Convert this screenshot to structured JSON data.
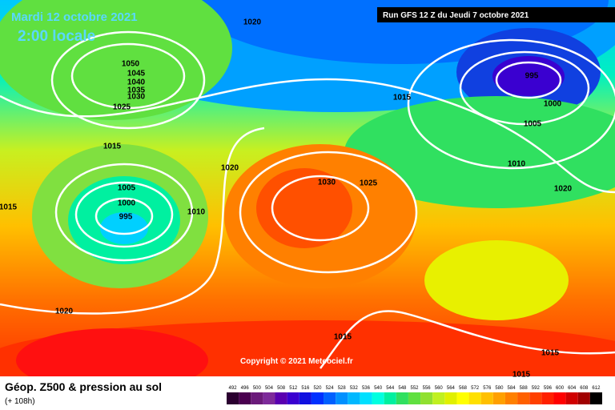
{
  "header": {
    "date": "Mardi 12 octobre 2021",
    "local_time": "2:00 locale",
    "run": "Run GFS 12 Z du Jeudi 7 octobre 2021"
  },
  "copyright": "Copyright © 2021 Meteociel.fr",
  "footer": {
    "title": "Géop. Z500 & pression au sol",
    "lead": "(+ 108h)"
  },
  "isobar_labels": [
    1020,
    1050,
    1045,
    1040,
    1035,
    1030,
    1025,
    1015,
    1015,
    995,
    1000,
    1005,
    1010,
    1020,
    1020,
    1030,
    1025,
    1005,
    1000,
    995,
    1010,
    1015,
    1020,
    1015,
    1015,
    1015
  ],
  "colorbar": {
    "labels": [
      492,
      496,
      500,
      504,
      508,
      512,
      516,
      520,
      524,
      528,
      532,
      536,
      540,
      544,
      548,
      552,
      556,
      560,
      564,
      568,
      572,
      576,
      580,
      584,
      588,
      592,
      596,
      600,
      604,
      608,
      612
    ],
    "colors": [
      "#2b0030",
      "#4a004f",
      "#6b1a7a",
      "#7d2a9a",
      "#5a00b0",
      "#3a00d0",
      "#1010e0",
      "#0030ff",
      "#0060ff",
      "#0090ff",
      "#00b8ff",
      "#00e0ff",
      "#00ffe0",
      "#00f0a0",
      "#30e060",
      "#60e040",
      "#90e030",
      "#c0f020",
      "#e0f000",
      "#ffff00",
      "#ffe000",
      "#ffc000",
      "#ffa000",
      "#ff8000",
      "#ff6000",
      "#ff4000",
      "#ff2000",
      "#ff0000",
      "#d00000",
      "#a00000",
      "#000000"
    ]
  }
}
